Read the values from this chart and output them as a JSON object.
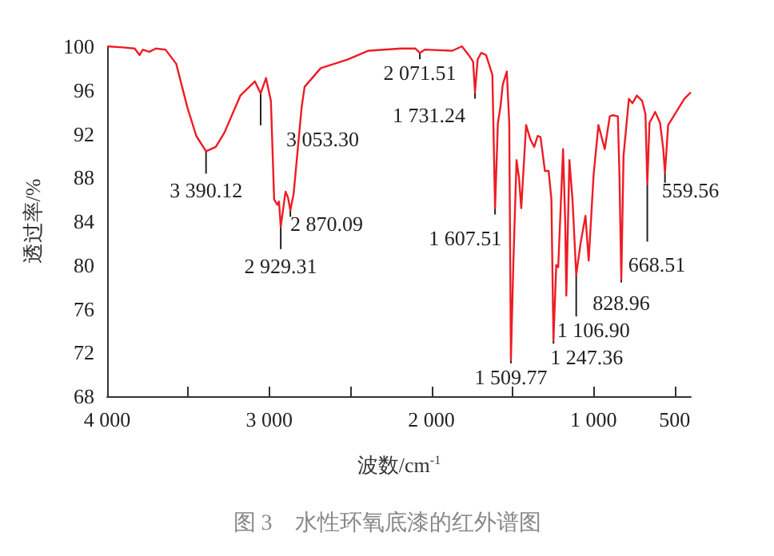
{
  "chart_data": {
    "type": "line",
    "title": "图 3　水性环氧底漆的红外谱图",
    "xlabel": "波数/cm$^{-1}$",
    "ylabel": "透过率/%",
    "xlim": [
      4000,
      400
    ],
    "xticks": [
      {
        "value": 4000,
        "label": "4 000"
      },
      {
        "value": 3500,
        "label": null
      },
      {
        "value": 3000,
        "label": "3 000"
      },
      {
        "value": 2500,
        "label": null
      },
      {
        "value": 2000,
        "label": "2 000"
      },
      {
        "value": 1500,
        "label": null
      },
      {
        "value": 1000,
        "label": "1 000"
      },
      500
    ],
    "ylim": [
      68,
      100
    ],
    "yticks": [
      68,
      72,
      76,
      80,
      84,
      88,
      92,
      96,
      100
    ],
    "grid": false,
    "marker": "none",
    "line_style": "solid",
    "series": [
      {
        "color": "#ee1c25",
        "x": [
          4000,
          3900,
          3830,
          3800,
          3780,
          3740,
          3700,
          3640,
          3574,
          3505,
          3450,
          3390.12,
          3330,
          3277,
          3178,
          3089,
          3053.3,
          3020,
          2990,
          2970,
          2950,
          2940,
          2929.31,
          2900,
          2885,
          2870.09,
          2850,
          2800,
          2782,
          2683,
          2515,
          2388,
          2188,
          2100,
          2071.51,
          2040,
          1871,
          1812,
          1770,
          1743,
          1731.24,
          1715,
          1693,
          1663,
          1624,
          1607.51,
          1590,
          1574,
          1560,
          1535,
          1520,
          1509.77,
          1495,
          1475,
          1460,
          1446,
          1416,
          1390,
          1366,
          1345,
          1327,
          1300,
          1277,
          1260,
          1247.36,
          1230,
          1218,
          1188,
          1175,
          1168,
          1149,
          1130,
          1106.9,
          1080,
          1050,
          1030,
          1000,
          970,
          931,
          900,
          881,
          850,
          840,
          828.96,
          815,
          782,
          760,
          733,
          700,
          680,
          668.51,
          655,
          630,
          620,
          590,
          570,
          559.56,
          540,
          490,
          440,
          400
        ],
        "values": [
          100,
          99.9,
          99.8,
          99.2,
          99.7,
          99.5,
          99.8,
          99.7,
          98.4,
          94.4,
          91.8,
          90.4,
          90.8,
          92.1,
          95.5,
          96.8,
          95.7,
          97.1,
          95,
          86,
          85.5,
          85.8,
          83.5,
          86.7,
          86.2,
          85,
          86.5,
          94.5,
          96.3,
          98,
          98.8,
          99.6,
          99.8,
          99.8,
          99.4,
          99.7,
          99.6,
          100,
          99.2,
          98.6,
          95.8,
          98.8,
          99.4,
          99.2,
          97.4,
          85.2,
          93,
          94.5,
          96.5,
          97.7,
          93,
          71.3,
          80,
          89.6,
          88,
          85.2,
          92.8,
          91.5,
          90.8,
          91.8,
          91.7,
          88.6,
          88.6,
          86,
          73.1,
          80,
          79.8,
          90.6,
          84,
          77.2,
          89.6,
          86,
          79.1,
          82,
          84.5,
          80.4,
          88.2,
          92.8,
          90.6,
          93.6,
          93.7,
          93.6,
          88,
          78.7,
          90,
          95.2,
          94.8,
          95.5,
          95,
          93.8,
          87.4,
          93,
          93.7,
          94,
          93,
          90.6,
          88.4,
          92.8,
          94,
          95.2,
          95.8
        ]
      }
    ],
    "annotations": [
      {
        "text": "3 390.12",
        "x": 3390.12,
        "y": 90.4
      },
      {
        "text": "3 053.30",
        "x": 3053.3,
        "y": 95.7
      },
      {
        "text": "2 929.31",
        "x": 2929.31,
        "y": 83.5
      },
      {
        "text": "2 870.09",
        "x": 2870.09,
        "y": 85
      },
      {
        "text": "2 071.51",
        "x": 2071.51,
        "y": 99.4
      },
      {
        "text": "1 731.24",
        "x": 1731.24,
        "y": 95.8
      },
      {
        "text": "1 607.51",
        "x": 1607.51,
        "y": 85.2
      },
      {
        "text": "1 509.77",
        "x": 1509.77,
        "y": 71.3
      },
      {
        "text": "1 247.36",
        "x": 1247.36,
        "y": 73.1
      },
      {
        "text": "1 106.90",
        "x": 1106.9,
        "y": 79.1
      },
      {
        "text": "828.96",
        "x": 828.96,
        "y": 78.7
      },
      {
        "text": "668.51",
        "x": 668.51,
        "y": 87.4
      },
      {
        "text": "559.56",
        "x": 559.56,
        "y": 88.4
      }
    ]
  }
}
